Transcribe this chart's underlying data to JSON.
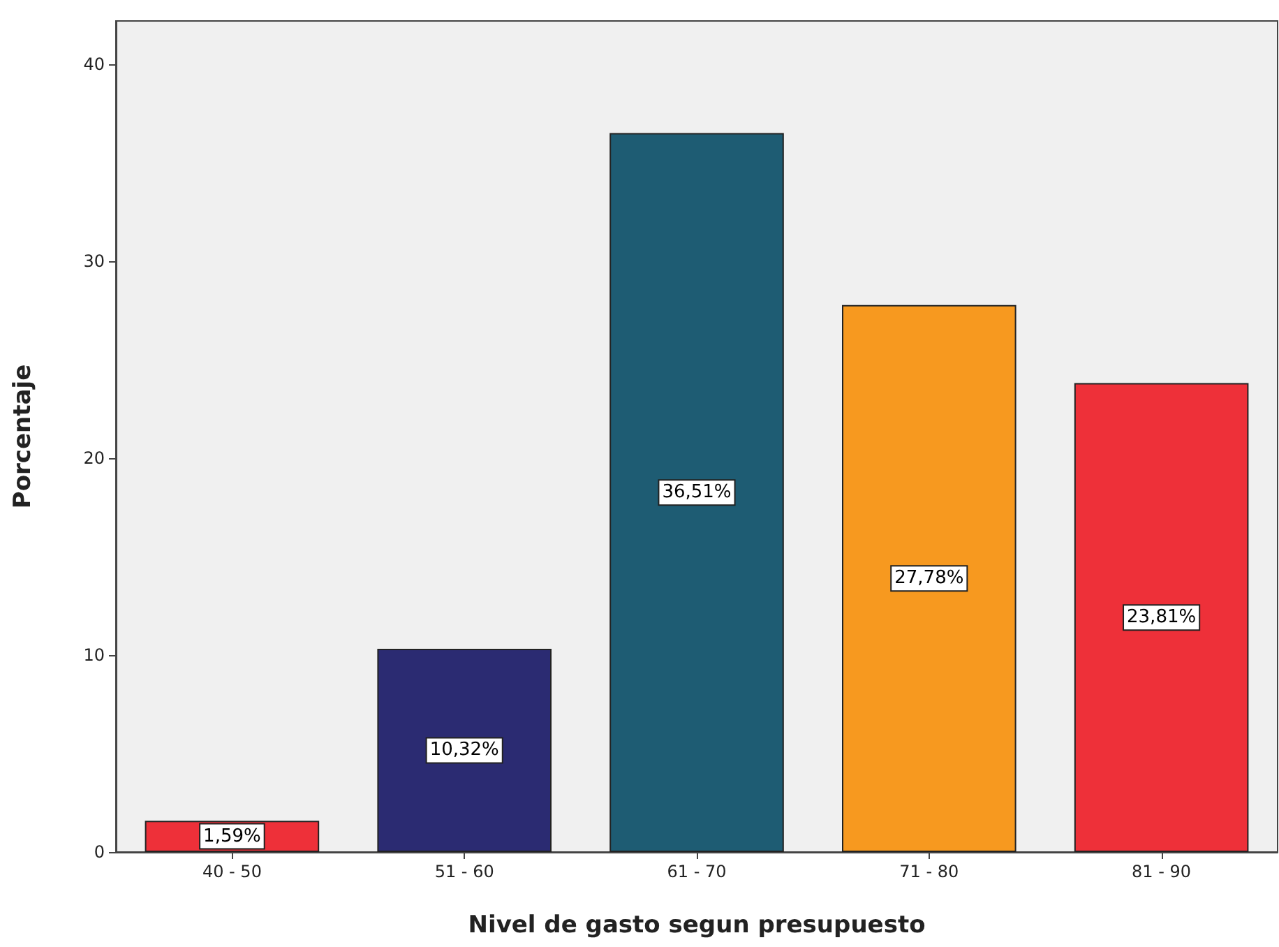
{
  "chart_data": {
    "type": "bar",
    "xlabel": "Nivel de gasto segun presupuesto",
    "ylabel": "Porcentaje",
    "categories": [
      "40 - 50",
      "51 - 60",
      "61 - 70",
      "71 - 80",
      "81 - 90"
    ],
    "values": [
      1.59,
      10.32,
      36.51,
      27.78,
      23.81
    ],
    "colors": [
      "#ee3039",
      "#2b2b72",
      "#1e5c73",
      "#f7991f",
      "#ee3039"
    ],
    "value_labels": [
      "1,59%",
      "10,32%",
      "36,51%",
      "27,78%",
      "23,81%"
    ],
    "ylim": [
      0,
      42.2
    ],
    "yticks": [
      0,
      10,
      20,
      30,
      40
    ]
  }
}
